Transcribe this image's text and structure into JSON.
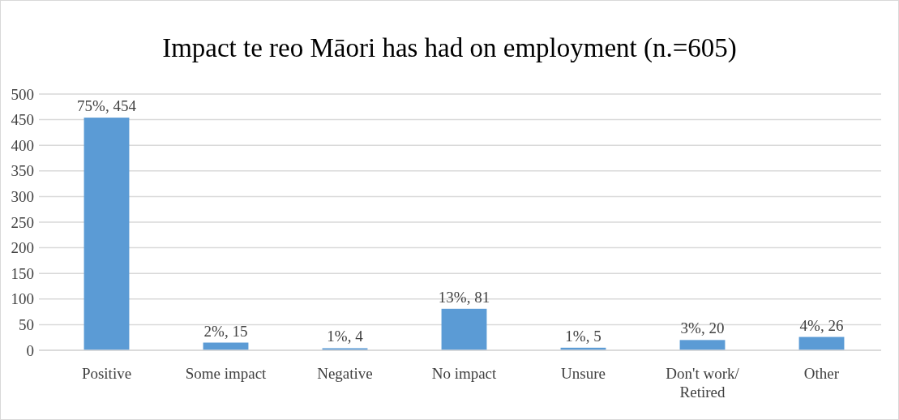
{
  "chart_data": {
    "type": "bar",
    "title": "Impact te reo Māori has had on employment (n.=605)",
    "categories": [
      "Positive",
      "Some impact",
      "Negative",
      "No impact",
      "Unsure",
      "Don't work/ Retired",
      "Other"
    ],
    "values": [
      454,
      15,
      4,
      81,
      5,
      20,
      26
    ],
    "value_labels": [
      "75%, 454",
      "2%, 15",
      "1%, 4",
      "13%, 81",
      "1%, 5",
      "3%, 20",
      "4%, 26"
    ],
    "color": "#5b9bd5",
    "ylim": [
      0,
      500
    ],
    "yticks": [
      0,
      50,
      100,
      150,
      200,
      250,
      300,
      350,
      400,
      450,
      500
    ],
    "grid": "y"
  }
}
